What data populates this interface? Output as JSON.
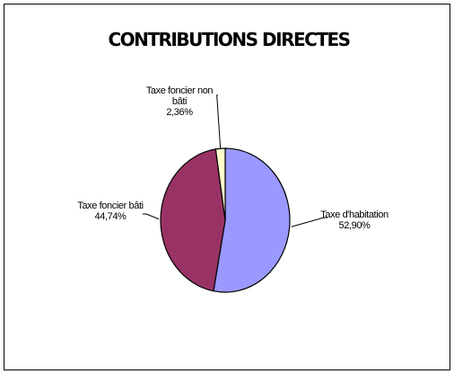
{
  "chart_data": {
    "type": "pie",
    "title": "CONTRIBUTIONS DIRECTES",
    "slices": [
      {
        "name": "Taxe d'habitation",
        "value": 52.9,
        "value_label": "52,90%",
        "color": "#9999ff"
      },
      {
        "name": "Taxe foncier bâti",
        "value": 44.74,
        "value_label": "44,74%",
        "color": "#993366"
      },
      {
        "name": "Taxe foncier non bâti",
        "name_lines": [
          "Taxe foncier non",
          "bâti"
        ],
        "value": 2.36,
        "value_label": "2,36%",
        "color": "#ffffcc"
      }
    ]
  }
}
